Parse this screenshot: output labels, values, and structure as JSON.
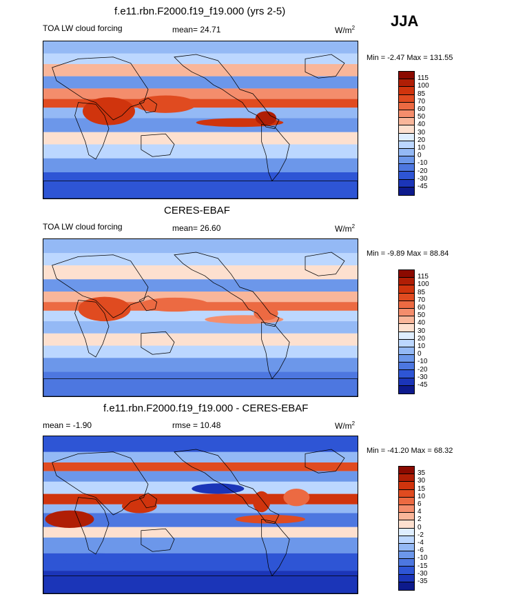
{
  "season": "JJA",
  "panels": [
    {
      "title": "f.e11.rbn.F2000.f19_f19.000 (yrs 2-5)",
      "left_label": "TOA LW cloud forcing",
      "center_label": "mean=  24.71",
      "units": "W/m",
      "units_sup": "2",
      "minmax": "Min =  -2.47 Max = 131.55",
      "colorbar_labels": [
        "115",
        "100",
        "85",
        "70",
        "60",
        "50",
        "40",
        "30",
        "20",
        "10",
        "0",
        "-10",
        "-20",
        "-30",
        "-45"
      ],
      "colors": [
        "#8b0a00",
        "#b01e05",
        "#d0340d",
        "#e04b20",
        "#ec6a42",
        "#f48d6c",
        "#f9b69a",
        "#fde0cf",
        "#dfeeff",
        "#bcd7ff",
        "#94b9f5",
        "#6c97ea",
        "#4d77e0",
        "#2e55d5",
        "#1b35b8",
        "#0d1a8c"
      ]
    },
    {
      "title": "CERES-EBAF",
      "left_label": "TOA LW cloud forcing",
      "center_label": "mean=  26.60",
      "units": "W/m",
      "units_sup": "2",
      "minmax": "Min =  -9.89 Max =  88.84",
      "colorbar_labels": [
        "115",
        "100",
        "85",
        "70",
        "60",
        "50",
        "40",
        "30",
        "20",
        "10",
        "0",
        "-10",
        "-20",
        "-30",
        "-45"
      ],
      "colors": [
        "#8b0a00",
        "#b01e05",
        "#d0340d",
        "#e04b20",
        "#ec6a42",
        "#f48d6c",
        "#f9b69a",
        "#fde0cf",
        "#dfeeff",
        "#bcd7ff",
        "#94b9f5",
        "#6c97ea",
        "#4d77e0",
        "#2e55d5",
        "#1b35b8",
        "#0d1a8c"
      ]
    },
    {
      "title": "f.e11.rbn.F2000.f19_f19.000 - CERES-EBAF",
      "left_label": "mean =  -1.90",
      "center_label": "rmse =  10.48",
      "units": "W/m",
      "units_sup": "2",
      "minmax": "Min = -41.20 Max =  68.32",
      "colorbar_labels": [
        "35",
        "30",
        "15",
        "10",
        "6",
        "4",
        "2",
        "0",
        "-2",
        "-4",
        "-6",
        "-10",
        "-15",
        "-30",
        "-35"
      ],
      "colors": [
        "#8b0a00",
        "#b01e05",
        "#d0340d",
        "#e04b20",
        "#ec6a42",
        "#f48d6c",
        "#f9b69a",
        "#fde0cf",
        "#dfeeff",
        "#bcd7ff",
        "#94b9f5",
        "#6c97ea",
        "#4d77e0",
        "#2e55d5",
        "#1b35b8",
        "#0d1a8c"
      ]
    }
  ]
}
